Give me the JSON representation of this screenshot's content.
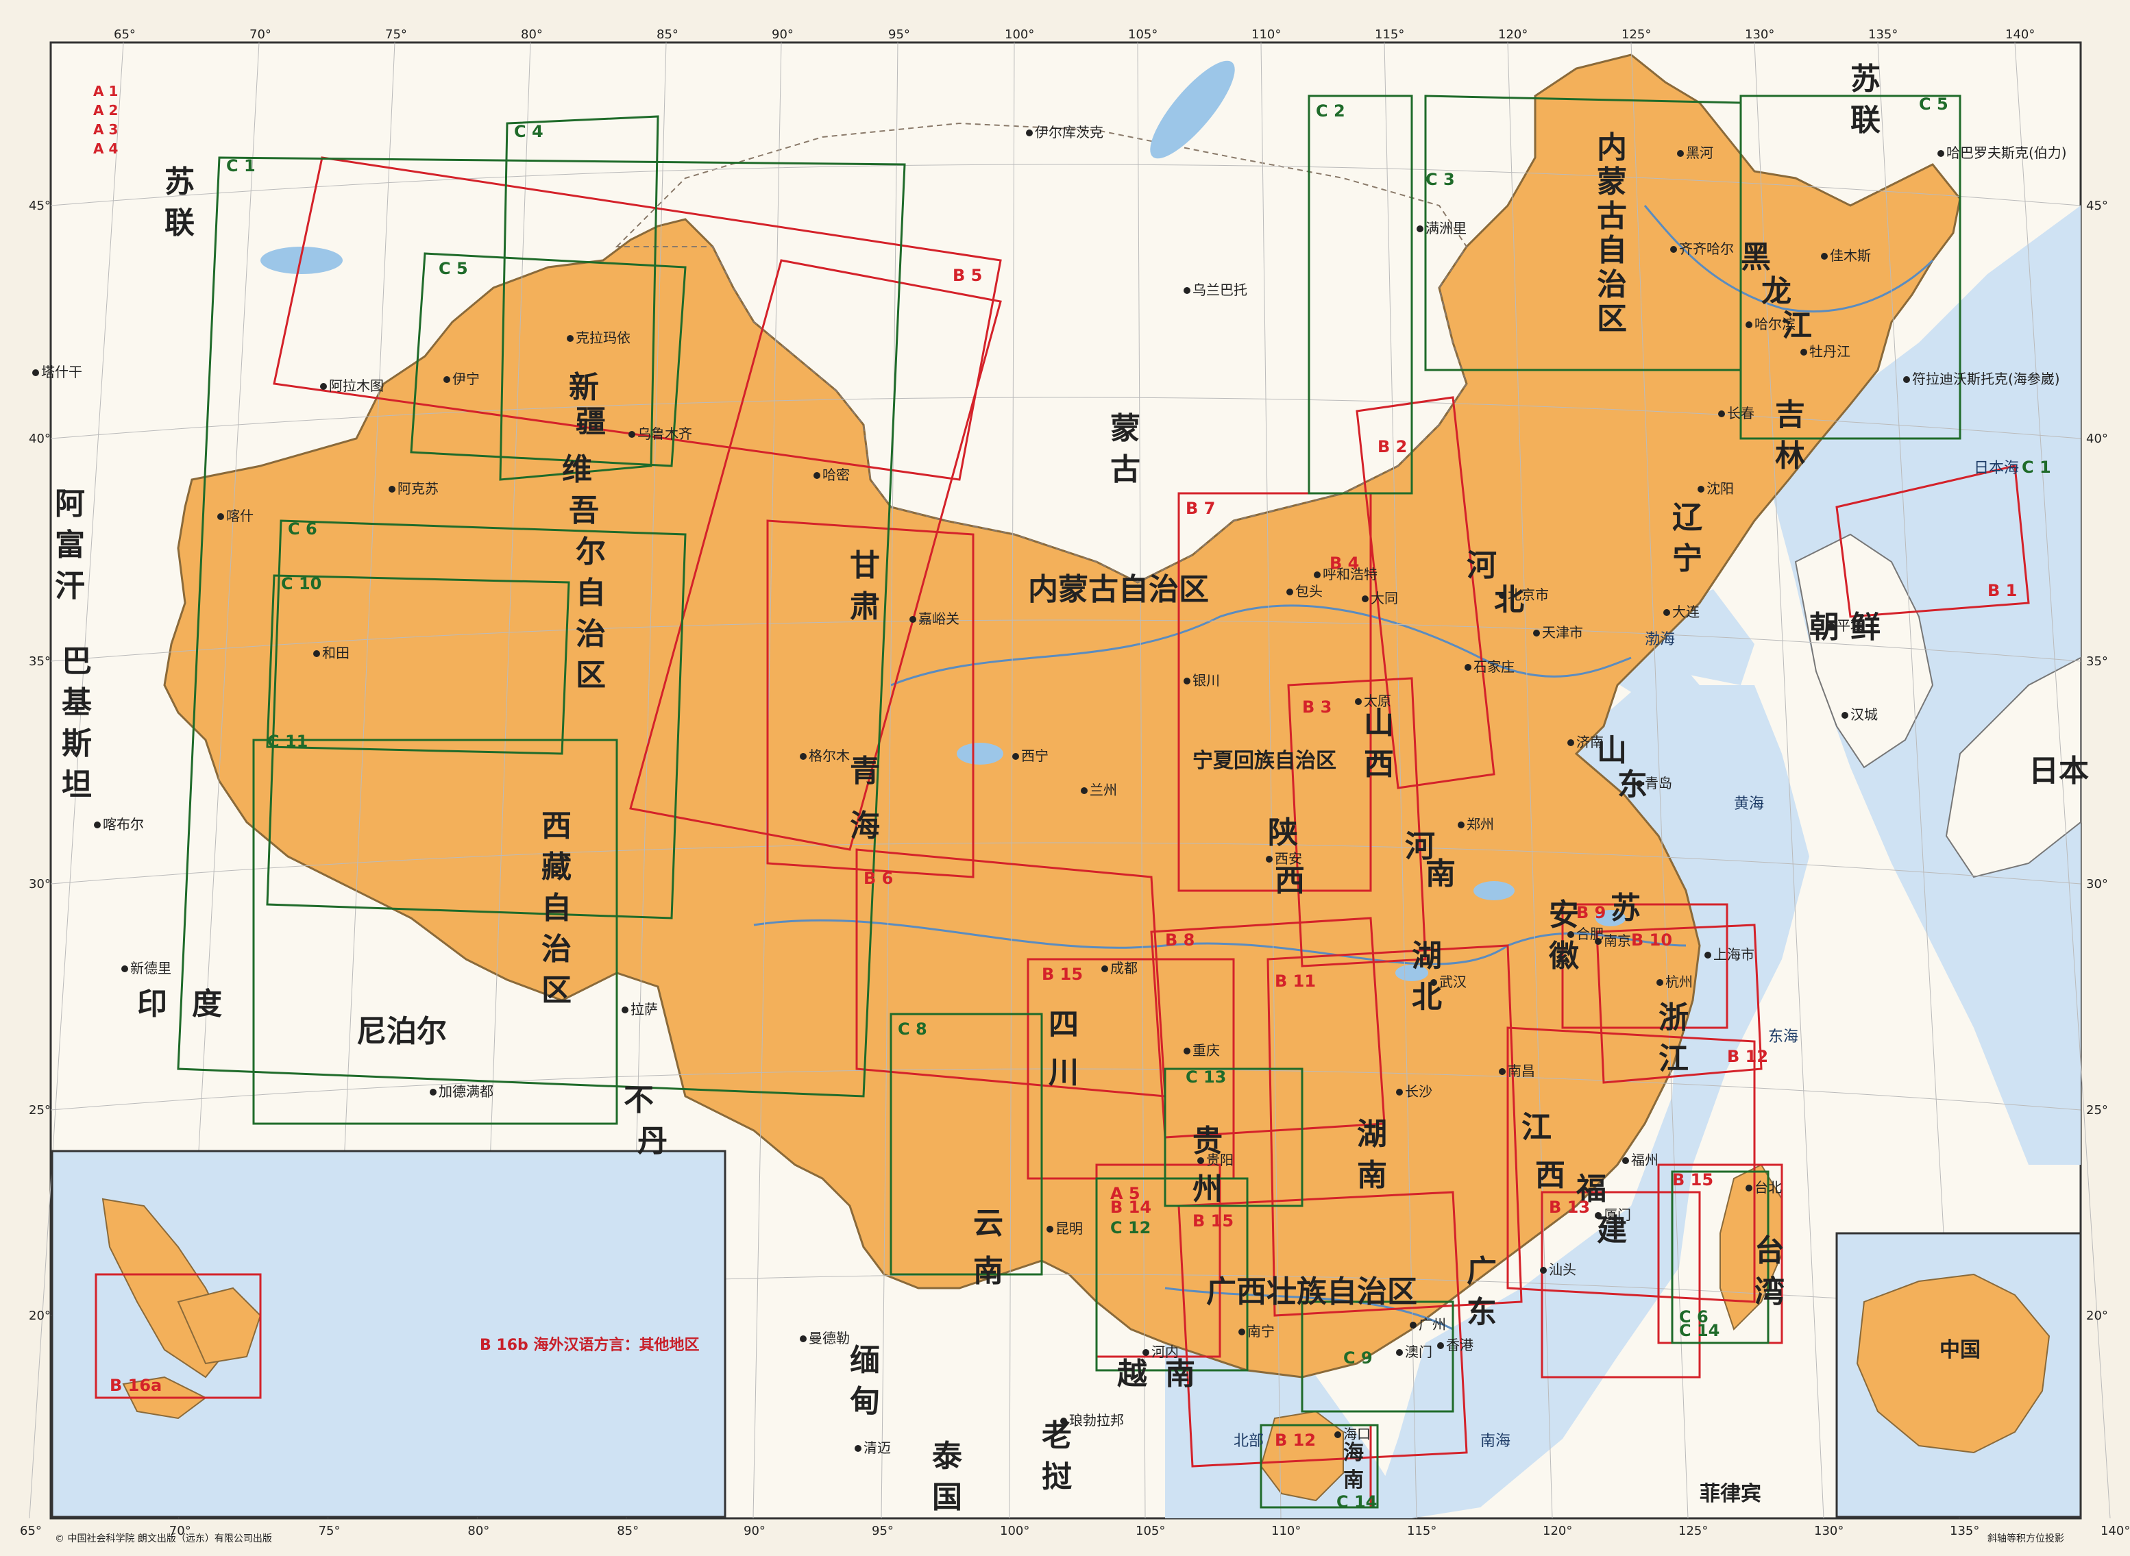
{
  "map": {
    "series_labels": [
      "A 1",
      "A 2",
      "A 3",
      "A 4"
    ],
    "longitude_ticks": [
      "65°",
      "70°",
      "75°",
      "80°",
      "85°",
      "90°",
      "95°",
      "100°",
      "105°",
      "110°",
      "115°",
      "120°",
      "125°",
      "130°",
      "135°",
      "140°"
    ],
    "latitude_ticks": [
      "45°",
      "40°",
      "35°",
      "30°",
      "25°",
      "20°"
    ],
    "regions": [
      {
        "id": "neimenggu",
        "text": "内蒙古自治区"
      },
      {
        "id": "xinjiang-1",
        "text": "新"
      },
      {
        "id": "xinjiang-2",
        "text": "疆"
      },
      {
        "id": "xinjiang-3",
        "text": "维"
      },
      {
        "id": "xinjiang-4",
        "text": "吾"
      },
      {
        "id": "xinjiang-5",
        "text": "尔"
      },
      {
        "id": "xinjiang-6",
        "text": "自"
      },
      {
        "id": "xinjiang-7",
        "text": "治"
      },
      {
        "id": "xinjiang-8",
        "text": "区"
      },
      {
        "id": "xizang-1",
        "text": "西"
      },
      {
        "id": "xizang-2",
        "text": "藏"
      },
      {
        "id": "xizang-3",
        "text": "自"
      },
      {
        "id": "xizang-4",
        "text": "治"
      },
      {
        "id": "xizang-5",
        "text": "区"
      },
      {
        "id": "qinghai-1",
        "text": "青"
      },
      {
        "id": "qinghai-2",
        "text": "海"
      },
      {
        "id": "gansu-1",
        "text": "甘"
      },
      {
        "id": "gansu-2",
        "text": "肃"
      },
      {
        "id": "sichuan-1",
        "text": "四"
      },
      {
        "id": "sichuan-2",
        "text": "川"
      },
      {
        "id": "yunnan-1",
        "text": "云"
      },
      {
        "id": "yunnan-2",
        "text": "南"
      },
      {
        "id": "guizhou-1",
        "text": "贵"
      },
      {
        "id": "guizhou-2",
        "text": "州"
      },
      {
        "id": "guangxi",
        "text": "广西壮族自治区"
      },
      {
        "id": "guangdong-1",
        "text": "广"
      },
      {
        "id": "guangdong-2",
        "text": "东"
      },
      {
        "id": "hunan-1",
        "text": "湖"
      },
      {
        "id": "hunan-2",
        "text": "南"
      },
      {
        "id": "hubei-1",
        "text": "湖"
      },
      {
        "id": "hubei-2",
        "text": "北"
      },
      {
        "id": "henan-1",
        "text": "河"
      },
      {
        "id": "henan-2",
        "text": "南"
      },
      {
        "id": "shaanxi-1",
        "text": "陕"
      },
      {
        "id": "shaanxi-2",
        "text": "西"
      },
      {
        "id": "shanxi-1",
        "text": "山"
      },
      {
        "id": "shanxi-2",
        "text": "西"
      },
      {
        "id": "hebei-1",
        "text": "河"
      },
      {
        "id": "hebei-2",
        "text": "北"
      },
      {
        "id": "shandong-1",
        "text": "山"
      },
      {
        "id": "shandong-2",
        "text": "东"
      },
      {
        "id": "jiangsu",
        "text": "苏"
      },
      {
        "id": "anhui-1",
        "text": "安"
      },
      {
        "id": "anhui-2",
        "text": "徽"
      },
      {
        "id": "zhejiang-1",
        "text": "浙"
      },
      {
        "id": "zhejiang-2",
        "text": "江"
      },
      {
        "id": "jiangxi-1",
        "text": "江"
      },
      {
        "id": "jiangxi-2",
        "text": "西"
      },
      {
        "id": "fujian-1",
        "text": "福"
      },
      {
        "id": "fujian-2",
        "text": "建"
      },
      {
        "id": "taiwan-1",
        "text": "台"
      },
      {
        "id": "taiwan-2",
        "text": "湾"
      },
      {
        "id": "hainan-1",
        "text": "海"
      },
      {
        "id": "hainan-2",
        "text": "南"
      },
      {
        "id": "liaoning-1",
        "text": "辽"
      },
      {
        "id": "liaoning-2",
        "text": "宁"
      },
      {
        "id": "jilin-1",
        "text": "吉"
      },
      {
        "id": "jilin-2",
        "text": "林"
      },
      {
        "id": "heilongjiang-1",
        "text": "黑"
      },
      {
        "id": "heilongjiang-2",
        "text": "龙"
      },
      {
        "id": "heilongjiang-3",
        "text": "江"
      },
      {
        "id": "ningxia",
        "text": "宁夏回族自治区"
      },
      {
        "id": "neimenggu-ne-1",
        "text": "内"
      },
      {
        "id": "neimenggu-ne-2",
        "text": "蒙"
      },
      {
        "id": "neimenggu-ne-3",
        "text": "古"
      },
      {
        "id": "neimenggu-ne-4",
        "text": "自"
      },
      {
        "id": "neimenggu-ne-5",
        "text": "治"
      },
      {
        "id": "neimenggu-ne-6",
        "text": "区"
      }
    ],
    "countries": [
      {
        "id": "sulian-w-1",
        "text": "苏"
      },
      {
        "id": "sulian-w-2",
        "text": "联"
      },
      {
        "id": "sulian-e-1",
        "text": "苏"
      },
      {
        "id": "sulian-e-2",
        "text": "联"
      },
      {
        "id": "menggu-1",
        "text": "蒙"
      },
      {
        "id": "menggu-2",
        "text": "古"
      },
      {
        "id": "afuhan-1",
        "text": "阿"
      },
      {
        "id": "afuhan-2",
        "text": "富"
      },
      {
        "id": "afuhan-3",
        "text": "汗"
      },
      {
        "id": "bajisitan-1",
        "text": "巴"
      },
      {
        "id": "bajisitan-2",
        "text": "基"
      },
      {
        "id": "bajisitan-3",
        "text": "斯"
      },
      {
        "id": "bajisitan-4",
        "text": "坦"
      },
      {
        "id": "yindu-1",
        "text": "印"
      },
      {
        "id": "yindu-2",
        "text": "度"
      },
      {
        "id": "niboer",
        "text": "尼泊尔"
      },
      {
        "id": "budan-1",
        "text": "不"
      },
      {
        "id": "budan-2",
        "text": "丹"
      },
      {
        "id": "miandian-1",
        "text": "缅"
      },
      {
        "id": "miandian-2",
        "text": "甸"
      },
      {
        "id": "yuenan-1",
        "text": "越"
      },
      {
        "id": "yuenan-2",
        "text": "南"
      },
      {
        "id": "laowo-1",
        "text": "老"
      },
      {
        "id": "laowo-2",
        "text": "挝"
      },
      {
        "id": "taiguo-1",
        "text": "泰"
      },
      {
        "id": "taiguo-2",
        "text": "国"
      },
      {
        "id": "chaoxian-1",
        "text": "朝"
      },
      {
        "id": "chaoxian-2",
        "text": "鲜"
      },
      {
        "id": "riben",
        "text": "日本"
      },
      {
        "id": "feilvbin",
        "text": "菲律宾"
      }
    ],
    "seas": [
      {
        "id": "bohai",
        "text": "渤海"
      },
      {
        "id": "huanghai",
        "text": "黄海"
      },
      {
        "id": "donghai",
        "text": "东海"
      },
      {
        "id": "nanhai",
        "text": "南海"
      },
      {
        "id": "ribenhai",
        "text": "日本海"
      },
      {
        "id": "beibu",
        "text": "北部"
      }
    ],
    "cities": [
      {
        "id": "beijing",
        "text": "北京市"
      },
      {
        "id": "tianjin",
        "text": "天津市"
      },
      {
        "id": "shanghai",
        "text": "上海市"
      },
      {
        "id": "wulumuqi",
        "text": "乌鲁木齐"
      },
      {
        "id": "lasa",
        "text": "拉萨"
      },
      {
        "id": "xining",
        "text": "西宁"
      },
      {
        "id": "lanzhou",
        "text": "兰州"
      },
      {
        "id": "chengdu",
        "text": "成都"
      },
      {
        "id": "chongqing",
        "text": "重庆"
      },
      {
        "id": "kunming",
        "text": "昆明"
      },
      {
        "id": "guiyang",
        "text": "贵阳"
      },
      {
        "id": "nanning",
        "text": "南宁"
      },
      {
        "id": "guangzhou",
        "text": "广州"
      },
      {
        "id": "changsha",
        "text": "长沙"
      },
      {
        "id": "wuhan",
        "text": "武汉"
      },
      {
        "id": "zhengzhou",
        "text": "郑州"
      },
      {
        "id": "xian",
        "text": "西安"
      },
      {
        "id": "taiyuan",
        "text": "太原"
      },
      {
        "id": "shijiazhuang",
        "text": "石家庄"
      },
      {
        "id": "jinan",
        "text": "济南"
      },
      {
        "id": "nanjing",
        "text": "南京"
      },
      {
        "id": "hefei",
        "text": "合肥"
      },
      {
        "id": "hangzhou",
        "text": "杭州"
      },
      {
        "id": "nanchang",
        "text": "南昌"
      },
      {
        "id": "fuzhou",
        "text": "福州"
      },
      {
        "id": "taibei",
        "text": "台北"
      },
      {
        "id": "haikou",
        "text": "海口"
      },
      {
        "id": "shenyang",
        "text": "沈阳"
      },
      {
        "id": "changchun",
        "text": "长春"
      },
      {
        "id": "haerbin",
        "text": "哈尔滨"
      },
      {
        "id": "huhehaote",
        "text": "呼和浩特"
      },
      {
        "id": "yinchuan",
        "text": "银川"
      },
      {
        "id": "dalian",
        "text": "大连"
      },
      {
        "id": "qingdao",
        "text": "青岛"
      },
      {
        "id": "xiamen",
        "text": "厦门"
      },
      {
        "id": "shantou",
        "text": "汕头"
      },
      {
        "id": "xianggang",
        "text": "香港"
      },
      {
        "id": "aomen",
        "text": "澳门"
      },
      {
        "id": "kashi",
        "text": "喀什"
      },
      {
        "id": "hetian",
        "text": "和田"
      },
      {
        "id": "akesu",
        "text": "阿克苏"
      },
      {
        "id": "yining",
        "text": "伊宁"
      },
      {
        "id": "kelamayi",
        "text": "克拉玛依"
      },
      {
        "id": "hami",
        "text": "哈密"
      },
      {
        "id": "geermu",
        "text": "格尔木"
      },
      {
        "id": "jiayuguan",
        "text": "嘉峪关"
      },
      {
        "id": "baotou",
        "text": "包头"
      },
      {
        "id": "datong",
        "text": "大同"
      },
      {
        "id": "qiqihaer",
        "text": "齐齐哈尔"
      },
      {
        "id": "manzhouli",
        "text": "满洲里"
      },
      {
        "id": "heihe",
        "text": "黑河"
      },
      {
        "id": "jiamusi",
        "text": "佳木斯"
      },
      {
        "id": "mudanjiang",
        "text": "牡丹江"
      },
      {
        "id": "wulanbatuo",
        "text": "乌兰巴托"
      },
      {
        "id": "yierkucike",
        "text": "伊尔库茨克"
      },
      {
        "id": "habaluofusike",
        "text": "哈巴罗夫斯克(伯力)"
      },
      {
        "id": "fuladiwosituoke",
        "text": "符拉迪沃斯托克(海参崴)"
      },
      {
        "id": "hanshan",
        "text": "汉城"
      },
      {
        "id": "pingrang",
        "text": "平壤"
      },
      {
        "id": "jiademan",
        "text": "加德满都"
      },
      {
        "id": "xindeli",
        "text": "新德里"
      },
      {
        "id": "manqie",
        "text": "曼德勒"
      },
      {
        "id": "qingmai",
        "text": "清迈"
      },
      {
        "id": "langbo",
        "text": "琅勃拉邦"
      },
      {
        "id": "hanoi",
        "text": "河内"
      },
      {
        "id": "alamutu",
        "text": "阿拉木图"
      },
      {
        "id": "tashigan",
        "text": "塔什干"
      },
      {
        "id": "kabul",
        "text": "喀布尔"
      }
    ],
    "boxes_red": [
      "B 1",
      "B 2",
      "B 3",
      "B 4",
      "B 5",
      "B 6",
      "B 7",
      "B 8",
      "B 9",
      "B 10",
      "B 11",
      "B 12",
      "B 12",
      "B 13",
      "B 14",
      "B 15",
      "B 15",
      "B 15",
      "A 5"
    ],
    "boxes_green": [
      "C 1",
      "C 1",
      "C 2",
      "C 3",
      "C 4",
      "C 5",
      "C 5",
      "C 6",
      "C 6",
      "C 8",
      "C 9",
      "C 10",
      "C 11",
      "C 12",
      "C 13",
      "C 14",
      "C 14"
    ],
    "inset_southeast_asia": {
      "title": "B 16b  海外汉语方言：其他地区",
      "box_label": "B 16a"
    },
    "inset_china": {
      "label": "中国"
    },
    "footer": {
      "publisher": "© 中国社会科学院  朗文出版（远东）有限公司出版",
      "projection": "斜轴等积方位投影"
    },
    "colors": {
      "china_fill": "#f3b05a",
      "foreign_fill": "#fbf8f0",
      "sea_fill": "#cfe2f3",
      "box_red": "#d4222a",
      "box_green": "#1f6b2a",
      "border": "#6b6b6b"
    }
  }
}
